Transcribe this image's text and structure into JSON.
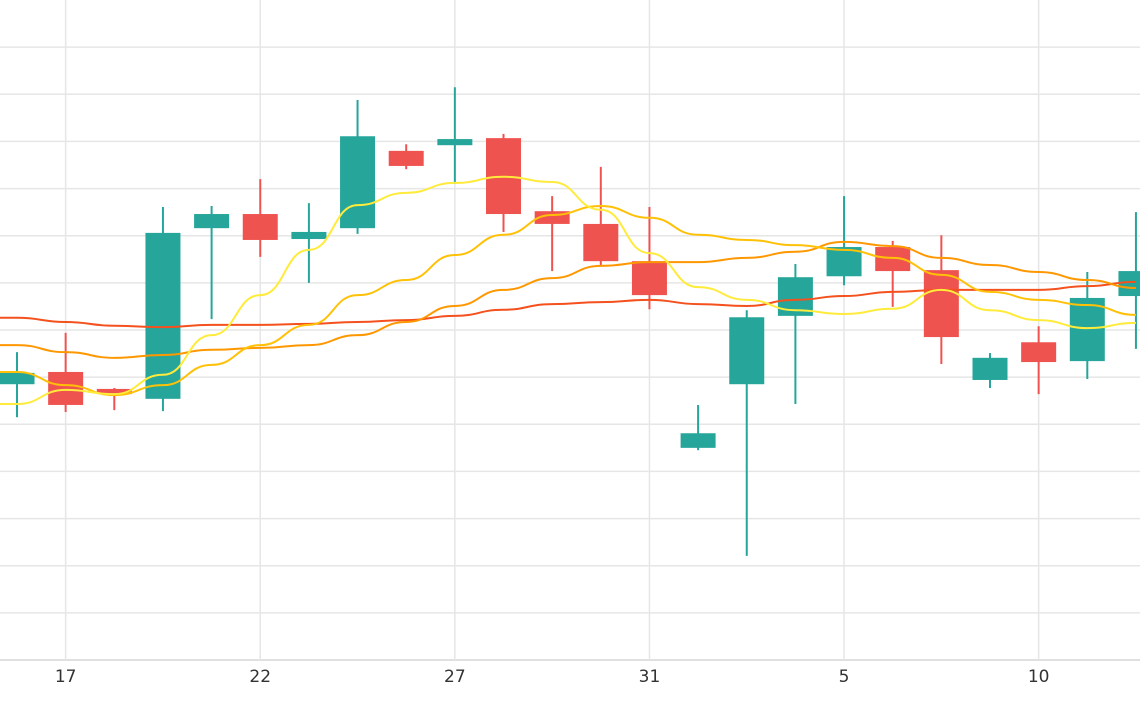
{
  "chart_data": {
    "type": "candlestick",
    "categories": [
      null,
      "17",
      null,
      null,
      null,
      "22",
      null,
      null,
      null,
      "27",
      null,
      null,
      null,
      "31",
      null,
      null,
      null,
      "5",
      null,
      null,
      null,
      "10",
      null,
      null
    ],
    "open": [
      5.85,
      6.11,
      5.75,
      5.54,
      9.16,
      9.46,
      8.93,
      9.16,
      10.8,
      10.92,
      11.07,
      9.52,
      9.25,
      8.46,
      4.5,
      5.85,
      7.3,
      8.14,
      8.76,
      8.27,
      5.94,
      6.74,
      6.34,
      7.72
    ],
    "high": [
      6.53,
      6.94,
      5.77,
      9.61,
      9.63,
      10.2,
      9.69,
      11.88,
      10.94,
      12.15,
      11.16,
      9.84,
      10.46,
      9.61,
      5.41,
      7.42,
      8.4,
      9.84,
      8.89,
      9.01,
      6.51,
      7.08,
      8.23,
      9.5
    ],
    "low": [
      5.15,
      5.26,
      5.3,
      5.28,
      7.23,
      8.55,
      8.0,
      9.04,
      10.41,
      10.1,
      9.08,
      8.25,
      8.38,
      7.44,
      4.45,
      2.21,
      5.43,
      7.95,
      7.49,
      6.28,
      5.77,
      5.64,
      5.96,
      6.6
    ],
    "close": [
      6.09,
      5.41,
      5.64,
      9.06,
      9.46,
      8.91,
      9.08,
      11.11,
      10.48,
      11.05,
      9.46,
      9.25,
      8.46,
      7.74,
      4.81,
      7.27,
      8.12,
      8.76,
      8.25,
      6.85,
      6.41,
      6.32,
      7.68,
      8.25
    ],
    "up_color": "#26a69a",
    "down_color": "#ef5350",
    "moving_averages": [
      {
        "color": "#f4511e",
        "values": [
          7.26,
          7.17,
          7.09,
          7.06,
          7.11,
          7.11,
          7.13,
          7.17,
          7.21,
          7.3,
          7.43,
          7.55,
          7.59,
          7.64,
          7.55,
          7.51,
          7.64,
          7.72,
          7.81,
          7.85,
          7.85,
          7.85,
          7.93,
          8.02
        ]
      },
      {
        "color": "#ff9800",
        "values": [
          6.68,
          6.53,
          6.41,
          6.47,
          6.58,
          6.62,
          6.68,
          6.89,
          7.17,
          7.51,
          7.85,
          8.1,
          8.36,
          8.44,
          8.44,
          8.53,
          8.66,
          8.87,
          8.78,
          8.53,
          8.38,
          8.23,
          8.06,
          7.89
        ]
      },
      {
        "color": "#ffc107",
        "values": [
          6.11,
          5.83,
          5.62,
          5.83,
          6.26,
          6.68,
          7.11,
          7.74,
          8.06,
          8.59,
          9.02,
          9.44,
          9.63,
          9.38,
          9.02,
          8.91,
          8.8,
          8.7,
          8.53,
          8.17,
          7.81,
          7.64,
          7.53,
          7.32
        ]
      },
      {
        "color": "#ffeb3b",
        "values": [
          5.43,
          5.73,
          5.64,
          6.05,
          6.89,
          7.74,
          8.7,
          9.65,
          9.91,
          10.12,
          10.25,
          10.14,
          9.55,
          8.63,
          7.91,
          7.64,
          7.42,
          7.34,
          7.45,
          7.85,
          7.42,
          7.21,
          7.04,
          7.15
        ]
      }
    ],
    "ylim": [
      0,
      14
    ],
    "yticks": [
      0,
      1,
      2,
      3,
      4,
      5,
      6,
      7,
      8,
      9,
      10,
      11,
      12,
      13
    ],
    "grid": true
  }
}
